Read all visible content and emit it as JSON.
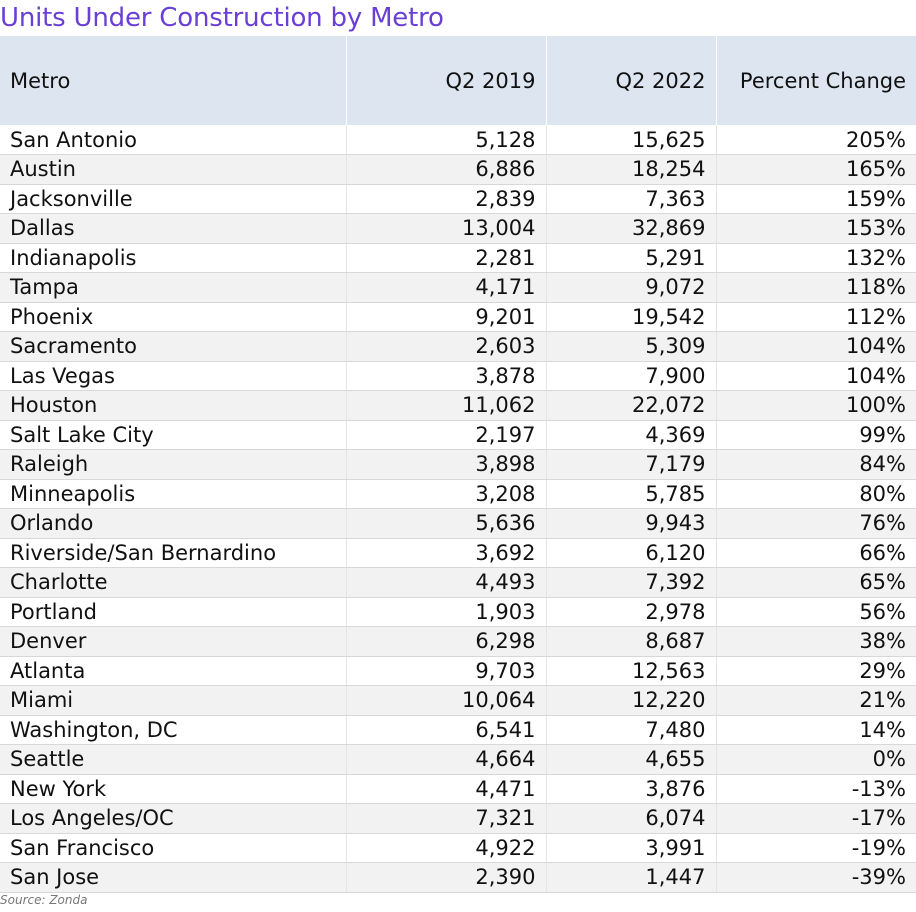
{
  "chart_data": {
    "type": "table",
    "title": "Units Under Construction by Metro",
    "columns": [
      "Metro",
      "Q2 2019",
      "Q2 2022",
      "Percent Change"
    ],
    "rows": [
      [
        "San Antonio",
        "5,128",
        "15,625",
        "205%"
      ],
      [
        "Austin",
        "6,886",
        "18,254",
        "165%"
      ],
      [
        "Jacksonville",
        "2,839",
        "7,363",
        "159%"
      ],
      [
        "Dallas",
        "13,004",
        "32,869",
        "153%"
      ],
      [
        "Indianapolis",
        "2,281",
        "5,291",
        "132%"
      ],
      [
        "Tampa",
        "4,171",
        "9,072",
        "118%"
      ],
      [
        "Phoenix",
        "9,201",
        "19,542",
        "112%"
      ],
      [
        "Sacramento",
        "2,603",
        "5,309",
        "104%"
      ],
      [
        "Las Vegas",
        "3,878",
        "7,900",
        "104%"
      ],
      [
        "Houston",
        "11,062",
        "22,072",
        "100%"
      ],
      [
        "Salt Lake City",
        "2,197",
        "4,369",
        "99%"
      ],
      [
        "Raleigh",
        "3,898",
        "7,179",
        "84%"
      ],
      [
        "Minneapolis",
        "3,208",
        "5,785",
        "80%"
      ],
      [
        "Orlando",
        "5,636",
        "9,943",
        "76%"
      ],
      [
        "Riverside/San Bernardino",
        "3,692",
        "6,120",
        "66%"
      ],
      [
        "Charlotte",
        "4,493",
        "7,392",
        "65%"
      ],
      [
        "Portland",
        "1,903",
        "2,978",
        "56%"
      ],
      [
        "Denver",
        "6,298",
        "8,687",
        "38%"
      ],
      [
        "Atlanta",
        "9,703",
        "12,563",
        "29%"
      ],
      [
        "Miami",
        "10,064",
        "12,220",
        "21%"
      ],
      [
        "Washington, DC",
        "6,541",
        "7,480",
        "14%"
      ],
      [
        "Seattle",
        "4,664",
        "4,655",
        "0%"
      ],
      [
        "New York",
        "4,471",
        "3,876",
        "-13%"
      ],
      [
        "Los Angeles/OC",
        "7,321",
        "6,074",
        "-17%"
      ],
      [
        "San Francisco",
        "4,922",
        "3,991",
        "-19%"
      ],
      [
        "San Jose",
        "2,390",
        "1,447",
        "-39%"
      ]
    ],
    "source": "Source: Zonda"
  },
  "colors": {
    "title": "#6a3fd6",
    "header_bg": "#dce5f0",
    "row_alt_bg": "#f2f2f2"
  }
}
